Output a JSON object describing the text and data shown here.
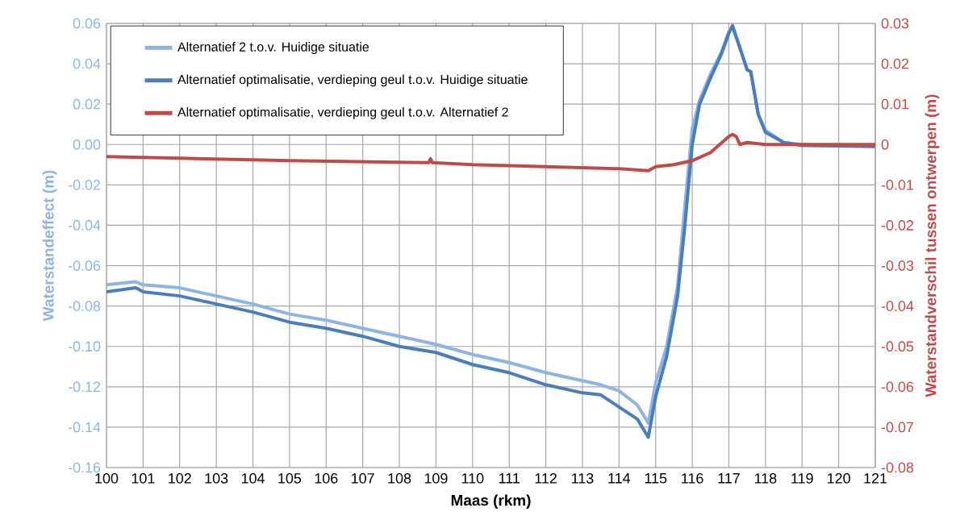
{
  "chart_data": {
    "type": "line",
    "xlabel": "Maas (rkm)",
    "ylabel": "Waterstandeffect (m)",
    "y2label": "Waterstandverschil tussen ontwerpen (m)",
    "xlim": [
      100,
      121
    ],
    "xticks": [
      100,
      101,
      102,
      103,
      104,
      105,
      106,
      107,
      108,
      109,
      110,
      111,
      112,
      113,
      114,
      115,
      116,
      117,
      118,
      119,
      120,
      121
    ],
    "ylim": [
      -0.16,
      0.06
    ],
    "yticks": [
      {
        "value": -0.16,
        "label": "-0.16"
      },
      {
        "value": -0.14,
        "label": "-0.14"
      },
      {
        "value": -0.12,
        "label": "-0.12"
      },
      {
        "value": -0.1,
        "label": "-0.10"
      },
      {
        "value": -0.08,
        "label": "-0.08"
      },
      {
        "value": -0.06,
        "label": "-0.06"
      },
      {
        "value": -0.04,
        "label": "-0.04"
      },
      {
        "value": -0.02,
        "label": "-0.02"
      },
      {
        "value": 0,
        "label": "0.00"
      },
      {
        "value": 0.02,
        "label": "0.02"
      },
      {
        "value": 0.04,
        "label": "0.04"
      },
      {
        "value": 0.06,
        "label": "0.06"
      }
    ],
    "y2lim": [
      -0.08,
      0.03
    ],
    "y2ticks": [
      -0.08,
      -0.07,
      -0.06,
      -0.05,
      -0.04,
      -0.03,
      -0.02,
      -0.01,
      0,
      0.01,
      0.02,
      0.03
    ],
    "grid": true,
    "legend": "top left",
    "series": [
      {
        "name": "Alternatief 2 t.o.v. Huidige situatie",
        "color": "#8db4e2",
        "x": [
          100,
          100.8,
          101,
          102,
          103,
          104,
          105,
          106,
          107,
          108,
          109,
          110,
          111,
          112,
          113,
          113.5,
          114,
          114.5,
          114.8,
          115,
          115.3,
          115.6,
          115.8,
          116,
          116.2,
          116.5,
          116.8,
          117,
          117.1,
          117.3,
          117.5,
          117.6,
          117.8,
          118,
          118.5,
          119,
          121
        ],
        "values": [
          -0.0695,
          -0.068,
          -0.0695,
          -0.071,
          -0.075,
          -0.079,
          -0.084,
          -0.087,
          -0.091,
          -0.095,
          -0.099,
          -0.104,
          -0.108,
          -0.113,
          -0.117,
          -0.119,
          -0.122,
          -0.129,
          -0.138,
          -0.118,
          -0.1,
          -0.07,
          -0.03,
          0.008,
          0.022,
          0.035,
          0.046,
          0.056,
          0.058,
          0.048,
          0.037,
          0.036,
          0.015,
          0.007,
          0.001,
          0,
          -0.001
        ]
      },
      {
        "name": "Alternatief optimalisatie, verdieping geul t.o.v. Huidige situatie",
        "color": "#4a7ebb",
        "x": [
          100,
          100.8,
          101,
          102,
          103,
          104,
          105,
          106,
          107,
          108,
          109,
          110,
          111,
          112,
          113,
          113.5,
          114,
          114.5,
          114.8,
          115,
          115.3,
          115.6,
          115.8,
          116,
          116.2,
          116.5,
          116.8,
          117,
          117.1,
          117.3,
          117.5,
          117.6,
          117.8,
          118,
          118.5,
          119,
          121
        ],
        "values": [
          -0.073,
          -0.071,
          -0.073,
          -0.075,
          -0.079,
          -0.083,
          -0.088,
          -0.091,
          -0.095,
          -0.1,
          -0.103,
          -0.109,
          -0.113,
          -0.119,
          -0.123,
          -0.124,
          -0.13,
          -0.136,
          -0.145,
          -0.125,
          -0.105,
          -0.075,
          -0.04,
          0,
          0.02,
          0.033,
          0.045,
          0.055,
          0.059,
          0.048,
          0.037,
          0.036,
          0.015,
          0.006,
          0.001,
          -0.0005,
          -0.001
        ]
      },
      {
        "name": "Alternatief optimalisatie, verdieping geul t.o.v. Alternatief 2",
        "color": "#be4b48",
        "axis": "y2",
        "x": [
          100,
          105,
          108.8,
          108.85,
          108.9,
          110,
          112,
          114,
          114.8,
          115,
          115.5,
          116,
          116.5,
          117,
          117.1,
          117.2,
          117.3,
          117.5,
          118,
          121
        ],
        "values": [
          -0.003,
          -0.004,
          -0.0045,
          -0.0035,
          -0.0045,
          -0.005,
          -0.0055,
          -0.006,
          -0.0065,
          -0.0055,
          -0.005,
          -0.004,
          -0.002,
          0.002,
          0.0025,
          0.002,
          0,
          0.0005,
          0,
          0
        ]
      }
    ]
  }
}
